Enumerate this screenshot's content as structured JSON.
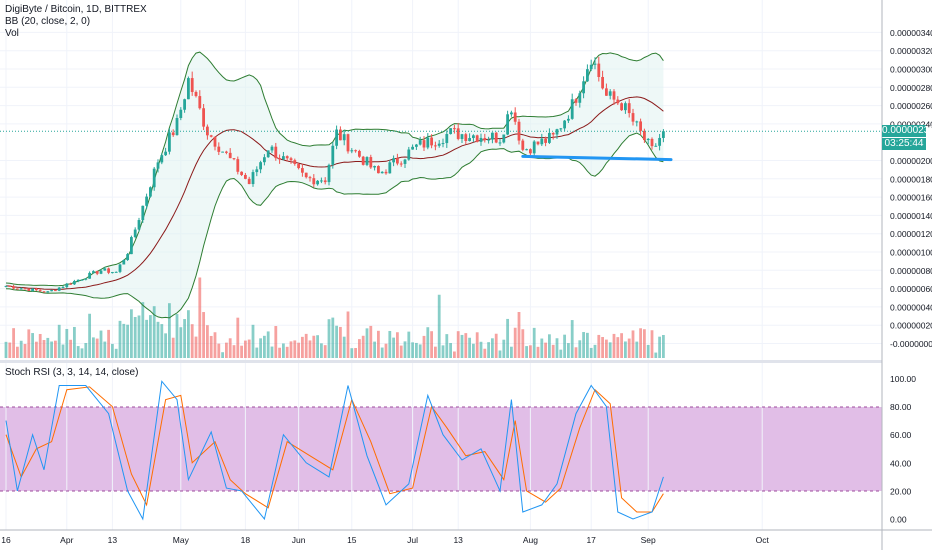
{
  "header": {
    "title": "DigiByte / Bitcoin, 1D, BITTREX",
    "indicator_bb": "BB (20, close, 2, 0)",
    "indicator_vol": "Vol",
    "indicator_stoch": "Stoch RSI (3, 3, 14, 14, close)"
  },
  "badges": {
    "last_price": "0.00000232",
    "countdown": "03:25:44"
  },
  "colors": {
    "up": "#26a69a",
    "down": "#ef5350",
    "bb_band": "#2e7d32",
    "bb_basis": "#8b1a1a",
    "bb_fill": "#e0f2f1",
    "stoch_k": "#2196f3",
    "stoch_d": "#ff6d00",
    "stoch_band": "#e1bee7",
    "trendline": "#2196f3"
  },
  "chart_data": {
    "type": "candlestick",
    "instrument": "DigiByte / Bitcoin, 1D, BITTREX",
    "price_axis": {
      "ticks": [
        "0.00000340",
        "0.00000320",
        "0.00000300",
        "0.00000280",
        "0.00000260",
        "0.00000240",
        "0.00000200",
        "0.00000180",
        "0.00000160",
        "0.00000140",
        "0.00000120",
        "0.00000100",
        "0.00000080",
        "0.00000060",
        "0.00000040",
        "0.00000020",
        "-0.00000000"
      ],
      "ylim": [
        -1e-07,
        3.55e-06
      ],
      "grid": true
    },
    "time_axis": {
      "ticks": [
        "16",
        "Apr",
        "13",
        "May",
        "18",
        "Jun",
        "15",
        "Jul",
        "13",
        "Aug",
        "17",
        "Sep",
        "Oct"
      ]
    },
    "close_path": [
      {
        "x": "Mar 16",
        "y": 6.3e-07
      },
      {
        "x": "Mar 27",
        "y": 5.6e-07
      },
      {
        "x": "Apr 10",
        "y": 8e-07
      },
      {
        "x": "Apr 14",
        "y": 7.8e-07
      },
      {
        "x": "Apr 17",
        "y": 1e-06
      },
      {
        "x": "Apr 25",
        "y": 2e-06
      },
      {
        "x": "Apr 30",
        "y": 2.4e-06
      },
      {
        "x": "May 3",
        "y": 2.88e-06
      },
      {
        "x": "May 8",
        "y": 2.32e-06
      },
      {
        "x": "May 16",
        "y": 1.9e-06
      },
      {
        "x": "May 19",
        "y": 1.75e-06
      },
      {
        "x": "May 24",
        "y": 2.15e-06
      },
      {
        "x": "Jun 3",
        "y": 1.8e-06
      },
      {
        "x": "Jun 8",
        "y": 1.8e-06
      },
      {
        "x": "Jun 11",
        "y": 2.3e-06
      },
      {
        "x": "Jun 17",
        "y": 2.05e-06
      },
      {
        "x": "Jun 22",
        "y": 1.85e-06
      },
      {
        "x": "Jul 2",
        "y": 2.15e-06
      },
      {
        "x": "Jul 11",
        "y": 2.3e-06
      },
      {
        "x": "Jul 24",
        "y": 2.25e-06
      },
      {
        "x": "Jul 27",
        "y": 2.6e-06
      },
      {
        "x": "Jul 30",
        "y": 2.12e-06
      },
      {
        "x": "Aug 7",
        "y": 2.25e-06
      },
      {
        "x": "Aug 12",
        "y": 2.6e-06
      },
      {
        "x": "Aug 17",
        "y": 3.15e-06
      },
      {
        "x": "Aug 21",
        "y": 2.7e-06
      },
      {
        "x": "Aug 25",
        "y": 2.62e-06
      },
      {
        "x": "Sep 2",
        "y": 2.1e-06
      },
      {
        "x": "Sep 5",
        "y": 2.32e-06
      }
    ],
    "trendline": {
      "from": {
        "x": "Jul 30",
        "y": 2.045e-06
      },
      "to": {
        "x": "Sep 7",
        "y": 2.01e-06
      }
    },
    "bollinger": {
      "band_color": "#2e7d32",
      "basis_color": "#8b1a1a"
    },
    "volume": {
      "spikes": [
        {
          "x": "May 6",
          "relative": 0.62
        },
        {
          "x": "Jul 8",
          "relative": 0.55
        },
        {
          "x": "Jul 30",
          "relative": 0.25
        },
        {
          "x": "Sep 5",
          "relative": 0.2
        }
      ]
    },
    "stoch_rsi": {
      "axis_ticks": [
        "100.00",
        "80.00",
        "60.00",
        "40.00",
        "20.00",
        "0.00"
      ],
      "ylim": [
        -10,
        108
      ],
      "upper_band": 80,
      "lower_band": 20,
      "k_path": [
        {
          "x": "Mar 16",
          "y": 70
        },
        {
          "x": "Mar 19",
          "y": 20
        },
        {
          "x": "Mar 23",
          "y": 60
        },
        {
          "x": "Mar 26",
          "y": 35
        },
        {
          "x": "Mar 30",
          "y": 95
        },
        {
          "x": "Apr 6",
          "y": 95
        },
        {
          "x": "Apr 12",
          "y": 75
        },
        {
          "x": "Apr 17",
          "y": 20
        },
        {
          "x": "Apr 21",
          "y": 0
        },
        {
          "x": "Apr 26",
          "y": 98
        },
        {
          "x": "Apr 30",
          "y": 85
        },
        {
          "x": "May 3",
          "y": 28
        },
        {
          "x": "May 9",
          "y": 62
        },
        {
          "x": "May 13",
          "y": 22
        },
        {
          "x": "May 17",
          "y": 20
        },
        {
          "x": "May 23",
          "y": 0
        },
        {
          "x": "May 28",
          "y": 60
        },
        {
          "x": "Jun 3",
          "y": 40
        },
        {
          "x": "Jun 9",
          "y": 30
        },
        {
          "x": "Jun 14",
          "y": 95
        },
        {
          "x": "Jun 19",
          "y": 45
        },
        {
          "x": "Jun 24",
          "y": 10
        },
        {
          "x": "Jun 30",
          "y": 25
        },
        {
          "x": "Jul 5",
          "y": 88
        },
        {
          "x": "Jul 9",
          "y": 60
        },
        {
          "x": "Jul 14",
          "y": 42
        },
        {
          "x": "Jul 19",
          "y": 50
        },
        {
          "x": "Jul 24",
          "y": 20
        },
        {
          "x": "Jul 27",
          "y": 85
        },
        {
          "x": "Jul 30",
          "y": 5
        },
        {
          "x": "Aug 4",
          "y": 10
        },
        {
          "x": "Aug 8",
          "y": 25
        },
        {
          "x": "Aug 13",
          "y": 75
        },
        {
          "x": "Aug 17",
          "y": 95
        },
        {
          "x": "Aug 21",
          "y": 80
        },
        {
          "x": "Aug 24",
          "y": 5
        },
        {
          "x": "Aug 28",
          "y": 0
        },
        {
          "x": "Sep 2",
          "y": 5
        },
        {
          "x": "Sep 5",
          "y": 30
        }
      ],
      "d_path": [
        {
          "x": "Mar 16",
          "y": 60
        },
        {
          "x": "Mar 20",
          "y": 30
        },
        {
          "x": "Mar 24",
          "y": 50
        },
        {
          "x": "Mar 28",
          "y": 55
        },
        {
          "x": "Apr 1",
          "y": 92
        },
        {
          "x": "Apr 7",
          "y": 94
        },
        {
          "x": "Apr 13",
          "y": 80
        },
        {
          "x": "Apr 18",
          "y": 32
        },
        {
          "x": "Apr 22",
          "y": 10
        },
        {
          "x": "Apr 27",
          "y": 85
        },
        {
          "x": "May 1",
          "y": 88
        },
        {
          "x": "May 4",
          "y": 40
        },
        {
          "x": "May 10",
          "y": 55
        },
        {
          "x": "May 14",
          "y": 28
        },
        {
          "x": "May 18",
          "y": 18
        },
        {
          "x": "May 24",
          "y": 8
        },
        {
          "x": "May 29",
          "y": 55
        },
        {
          "x": "Jun 4",
          "y": 45
        },
        {
          "x": "Jun 10",
          "y": 35
        },
        {
          "x": "Jun 15",
          "y": 85
        },
        {
          "x": "Jun 20",
          "y": 55
        },
        {
          "x": "Jun 25",
          "y": 18
        },
        {
          "x": "Jul 1",
          "y": 22
        },
        {
          "x": "Jul 6",
          "y": 80
        },
        {
          "x": "Jul 10",
          "y": 65
        },
        {
          "x": "Jul 15",
          "y": 45
        },
        {
          "x": "Jul 20",
          "y": 48
        },
        {
          "x": "Jul 25",
          "y": 28
        },
        {
          "x": "Jul 28",
          "y": 70
        },
        {
          "x": "Jul 31",
          "y": 20
        },
        {
          "x": "Aug 5",
          "y": 12
        },
        {
          "x": "Aug 9",
          "y": 22
        },
        {
          "x": "Aug 14",
          "y": 65
        },
        {
          "x": "Aug 18",
          "y": 92
        },
        {
          "x": "Aug 22",
          "y": 82
        },
        {
          "x": "Aug 25",
          "y": 15
        },
        {
          "x": "Aug 29",
          "y": 5
        },
        {
          "x": "Sep 2",
          "y": 5
        },
        {
          "x": "Sep 5",
          "y": 18
        }
      ]
    }
  }
}
